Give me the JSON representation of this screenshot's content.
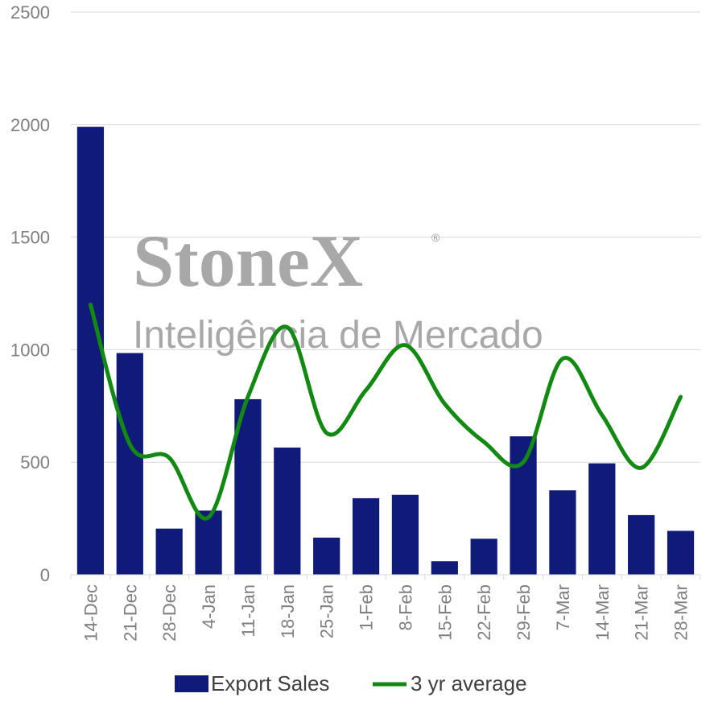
{
  "chart_data": {
    "type": "bar",
    "categories": [
      "14-Dec",
      "21-Dec",
      "28-Dec",
      "4-Jan",
      "11-Jan",
      "18-Jan",
      "25-Jan",
      "1-Feb",
      "8-Feb",
      "15-Feb",
      "22-Feb",
      "29-Feb",
      "7-Mar",
      "14-Mar",
      "21-Mar",
      "28-Mar"
    ],
    "series": [
      {
        "name": "Export Sales",
        "kind": "bar",
        "color": "#101a78",
        "values": [
          1990,
          985,
          205,
          285,
          780,
          565,
          165,
          340,
          355,
          60,
          160,
          615,
          375,
          495,
          265,
          195
        ]
      },
      {
        "name": "3 yr average",
        "kind": "line",
        "color": "#128a12",
        "values": [
          1200,
          580,
          520,
          255,
          790,
          1100,
          630,
          820,
          1020,
          760,
          590,
          500,
          960,
          710,
          475,
          790
        ]
      }
    ],
    "ylim": [
      0,
      2500
    ],
    "yticks": [
      0,
      500,
      1000,
      1500,
      2000,
      2500
    ],
    "grid": true,
    "legend_position": "bottom",
    "watermark": {
      "line1": "StoneX",
      "registered": "®",
      "line2": "Inteligência de Mercado"
    }
  }
}
